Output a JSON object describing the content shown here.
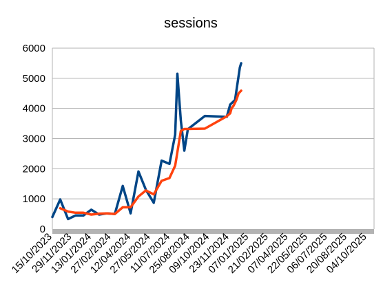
{
  "chart_data": {
    "type": "line",
    "title": "sessions",
    "xlabel": "",
    "ylabel": "",
    "ylim": [
      0,
      6000
    ],
    "yticks": [
      0,
      1000,
      2000,
      3000,
      4000,
      5000,
      6000
    ],
    "x_tick_labels": [
      "15/10/2023",
      "29/11/2023",
      "13/01/2024",
      "27/02/2024",
      "12/04/2024",
      "27/05/2024",
      "11/07/2024",
      "25/08/2024",
      "09/10/2024",
      "23/11/2024",
      "07/01/2025",
      "21/02/2025",
      "07/04/2025",
      "22/05/2025",
      "06/07/2025",
      "20/08/2025",
      "04/10/2025"
    ],
    "xlim": [
      "15/10/2023",
      "20/10/2025"
    ],
    "grid": "horizontal",
    "legend": "none",
    "series": [
      {
        "color": "#004586",
        "points": [
          [
            "15/10/2023",
            400
          ],
          [
            "02/11/2023",
            980
          ],
          [
            "20/11/2023",
            330
          ],
          [
            "07/12/2023",
            450
          ],
          [
            "25/12/2023",
            450
          ],
          [
            "12/01/2024",
            640
          ],
          [
            "30/01/2024",
            480
          ],
          [
            "17/02/2024",
            520
          ],
          [
            "06/03/2024",
            500
          ],
          [
            "24/03/2024",
            1430
          ],
          [
            "11/04/2024",
            520
          ],
          [
            "29/04/2024",
            1910
          ],
          [
            "16/05/2024",
            1300
          ],
          [
            "03/06/2024",
            870
          ],
          [
            "21/06/2024",
            2270
          ],
          [
            "09/07/2024",
            2160
          ],
          [
            "22/07/2024",
            3130
          ],
          [
            "27/07/2024",
            5150
          ],
          [
            "04/08/2024",
            3600
          ],
          [
            "12/08/2024",
            2600
          ],
          [
            "20/08/2024",
            3310
          ],
          [
            "28/09/2024",
            3750
          ],
          [
            "17/11/2024",
            3720
          ],
          [
            "25/11/2024",
            4130
          ],
          [
            "06/12/2024",
            4280
          ],
          [
            "17/12/2024",
            5360
          ],
          [
            "20/12/2024",
            5500
          ]
        ]
      },
      {
        "color": "#ff420e",
        "points": [
          [
            "02/11/2023",
            690
          ],
          [
            "20/11/2023",
            580
          ],
          [
            "07/12/2023",
            540
          ],
          [
            "25/12/2023",
            540
          ],
          [
            "12/01/2024",
            480
          ],
          [
            "30/01/2024",
            510
          ],
          [
            "17/02/2024",
            520
          ],
          [
            "06/03/2024",
            500
          ],
          [
            "24/03/2024",
            720
          ],
          [
            "11/04/2024",
            720
          ],
          [
            "29/04/2024",
            1080
          ],
          [
            "16/05/2024",
            1280
          ],
          [
            "03/06/2024",
            1150
          ],
          [
            "21/06/2024",
            1600
          ],
          [
            "09/07/2024",
            1690
          ],
          [
            "22/07/2024",
            2100
          ],
          [
            "04/08/2024",
            3250
          ],
          [
            "12/08/2024",
            3320
          ],
          [
            "20/08/2024",
            3320
          ],
          [
            "28/09/2024",
            3330
          ],
          [
            "17/11/2024",
            3740
          ],
          [
            "25/11/2024",
            3840
          ],
          [
            "28/11/2024",
            4000
          ],
          [
            "03/12/2024",
            4100
          ],
          [
            "09/12/2024",
            4280
          ],
          [
            "14/12/2024",
            4500
          ],
          [
            "20/12/2024",
            4590
          ]
        ]
      }
    ]
  }
}
